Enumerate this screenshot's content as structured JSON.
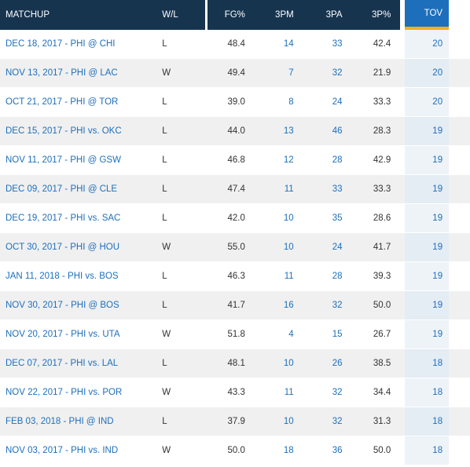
{
  "table": {
    "headers": {
      "matchup": "MATCHUP",
      "wl": "W/L",
      "fg_pct": "FG%",
      "three_pm": "3PM",
      "three_pa": "3PA",
      "three_pct": "3P%",
      "tov": "TOV"
    },
    "sorted_column": "TOV",
    "colors": {
      "header": "#17344f",
      "sorted_header": "#1d6fbc",
      "sort_accent": "#f2b01e",
      "link": "#1d6fbc",
      "row_alt": "#f0f0f0"
    },
    "rows": [
      {
        "matchup": "DEC 18, 2017 - PHI @ CHI",
        "wl": "L",
        "fg_pct": "48.4",
        "three_pm": "14",
        "three_pa": "33",
        "three_pct": "42.4",
        "tov": "20"
      },
      {
        "matchup": "NOV 13, 2017 - PHI @ LAC",
        "wl": "W",
        "fg_pct": "49.4",
        "three_pm": "7",
        "three_pa": "32",
        "three_pct": "21.9",
        "tov": "20"
      },
      {
        "matchup": "OCT 21, 2017 - PHI @ TOR",
        "wl": "L",
        "fg_pct": "39.0",
        "three_pm": "8",
        "three_pa": "24",
        "three_pct": "33.3",
        "tov": "20"
      },
      {
        "matchup": "DEC 15, 2017 - PHI vs. OKC",
        "wl": "L",
        "fg_pct": "44.0",
        "three_pm": "13",
        "three_pa": "46",
        "three_pct": "28.3",
        "tov": "19"
      },
      {
        "matchup": "NOV 11, 2017 - PHI @ GSW",
        "wl": "L",
        "fg_pct": "46.8",
        "three_pm": "12",
        "three_pa": "28",
        "three_pct": "42.9",
        "tov": "19"
      },
      {
        "matchup": "DEC 09, 2017 - PHI @ CLE",
        "wl": "L",
        "fg_pct": "47.4",
        "three_pm": "11",
        "three_pa": "33",
        "three_pct": "33.3",
        "tov": "19"
      },
      {
        "matchup": "DEC 19, 2017 - PHI vs. SAC",
        "wl": "L",
        "fg_pct": "42.0",
        "three_pm": "10",
        "three_pa": "35",
        "three_pct": "28.6",
        "tov": "19"
      },
      {
        "matchup": "OCT 30, 2017 - PHI @ HOU",
        "wl": "W",
        "fg_pct": "55.0",
        "three_pm": "10",
        "three_pa": "24",
        "three_pct": "41.7",
        "tov": "19"
      },
      {
        "matchup": "JAN 11, 2018 - PHI vs. BOS",
        "wl": "L",
        "fg_pct": "46.3",
        "three_pm": "11",
        "three_pa": "28",
        "three_pct": "39.3",
        "tov": "19"
      },
      {
        "matchup": "NOV 30, 2017 - PHI @ BOS",
        "wl": "L",
        "fg_pct": "41.7",
        "three_pm": "16",
        "three_pa": "32",
        "three_pct": "50.0",
        "tov": "19"
      },
      {
        "matchup": "NOV 20, 2017 - PHI vs. UTA",
        "wl": "W",
        "fg_pct": "51.8",
        "three_pm": "4",
        "three_pa": "15",
        "three_pct": "26.7",
        "tov": "19"
      },
      {
        "matchup": "DEC 07, 2017 - PHI vs. LAL",
        "wl": "L",
        "fg_pct": "48.1",
        "three_pm": "10",
        "three_pa": "26",
        "three_pct": "38.5",
        "tov": "18"
      },
      {
        "matchup": "NOV 22, 2017 - PHI vs. POR",
        "wl": "W",
        "fg_pct": "43.3",
        "three_pm": "11",
        "three_pa": "32",
        "three_pct": "34.4",
        "tov": "18"
      },
      {
        "matchup": "FEB 03, 2018 - PHI @ IND",
        "wl": "L",
        "fg_pct": "37.9",
        "three_pm": "10",
        "three_pa": "32",
        "three_pct": "31.3",
        "tov": "18"
      },
      {
        "matchup": "NOV 03, 2017 - PHI vs. IND",
        "wl": "W",
        "fg_pct": "50.0",
        "three_pm": "18",
        "three_pa": "36",
        "three_pct": "50.0",
        "tov": "18"
      }
    ]
  }
}
